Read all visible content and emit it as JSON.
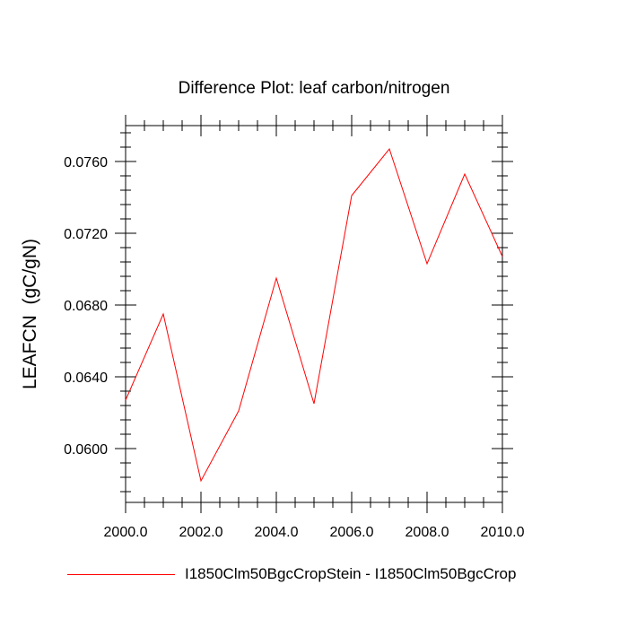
{
  "chart_data": {
    "type": "line",
    "title": "Difference Plot: leaf carbon/nitrogen",
    "xlabel": "",
    "ylabel": "LEAFCN  (gC/gN)",
    "xlim": [
      2000,
      2010
    ],
    "ylim": [
      0.057,
      0.078
    ],
    "xticks": [
      2000,
      2002,
      2004,
      2006,
      2008,
      2010
    ],
    "xtick_labels": [
      "2000.0",
      "2002.0",
      "2004.0",
      "2006.0",
      "2008.0",
      "2010.0"
    ],
    "yticks": [
      0.06,
      0.064,
      0.068,
      0.072,
      0.076
    ],
    "ytick_labels": [
      "0.0600",
      "0.0640",
      "0.0680",
      "0.0720",
      "0.0760"
    ],
    "grid": false,
    "legend_position": "bottom",
    "series": [
      {
        "name": "I1850Clm50BgcCropStein - I1850Clm50BgcCrop",
        "color": "#ff0000",
        "x": [
          2000,
          2001,
          2002,
          2003,
          2004,
          2005,
          2006,
          2007,
          2008,
          2009,
          2010
        ],
        "y": [
          0.0627,
          0.0675,
          0.0582,
          0.0621,
          0.0695,
          0.0625,
          0.0741,
          0.0767,
          0.0703,
          0.0753,
          0.0707
        ]
      }
    ]
  }
}
